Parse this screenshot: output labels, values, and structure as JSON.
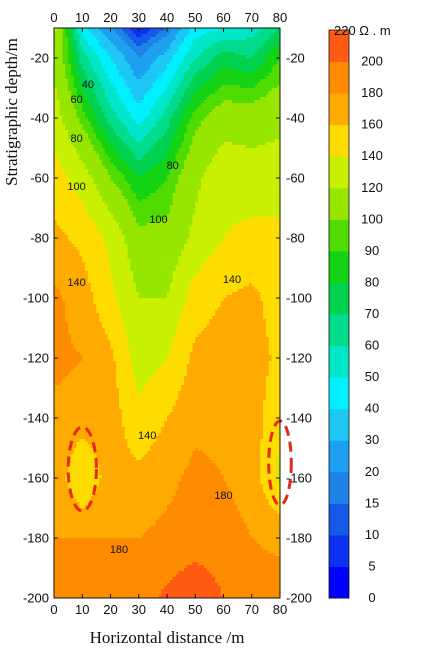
{
  "chart_data": {
    "type": "heatmap",
    "subtype": "filled-contour",
    "title": "",
    "xlabel": "Horizontal distance /m",
    "ylabel": "Stratigraphic depth/m",
    "xlim": [
      0,
      80
    ],
    "ylim": [
      -200,
      -10
    ],
    "x_ticks": [
      "0",
      "10",
      "20",
      "30",
      "40",
      "50",
      "60",
      "70",
      "80"
    ],
    "y_ticks": [
      "-20",
      "-40",
      "-60",
      "-80",
      "-100",
      "-120",
      "-140",
      "-160",
      "-180",
      "-200"
    ],
    "colorbar": {
      "unit_label": "220 Ω . m",
      "levels": [
        "0",
        "5",
        "10",
        "15",
        "20",
        "30",
        "40",
        "50",
        "60",
        "70",
        "80",
        "90",
        "100",
        "120",
        "140",
        "160",
        "180",
        "200"
      ],
      "colors": [
        "#0000ff",
        "#0a32f0",
        "#145ae6",
        "#1e82e6",
        "#1ea0f0",
        "#1ec8f5",
        "#00f0ff",
        "#00e6c8",
        "#00dc8c",
        "#00d250",
        "#14d214",
        "#50dc00",
        "#96e600",
        "#c8f000",
        "#ffdc00",
        "#ffaa00",
        "#ff8c00",
        "#ff5a14"
      ]
    },
    "x": [
      0,
      10,
      20,
      30,
      40,
      50,
      60,
      70,
      80
    ],
    "y": [
      -10,
      -20,
      -40,
      -60,
      -80,
      -100,
      -120,
      -140,
      -160,
      -180,
      -200
    ],
    "z": [
      [
        125,
        45,
        20,
        5,
        15,
        45,
        50,
        55,
        70
      ],
      [
        115,
        65,
        40,
        20,
        35,
        60,
        75,
        70,
        90
      ],
      [
        130,
        95,
        65,
        45,
        65,
        95,
        110,
        110,
        115
      ],
      [
        150,
        130,
        100,
        80,
        90,
        115,
        135,
        130,
        130
      ],
      [
        165,
        155,
        135,
        105,
        105,
        125,
        140,
        145,
        145
      ],
      [
        185,
        170,
        145,
        120,
        120,
        150,
        160,
        165,
        150
      ],
      [
        185,
        180,
        165,
        130,
        140,
        165,
        170,
        170,
        155
      ],
      [
        175,
        170,
        170,
        145,
        160,
        175,
        175,
        170,
        145
      ],
      [
        175,
        140,
        170,
        165,
        175,
        185,
        180,
        170,
        135
      ],
      [
        180,
        180,
        180,
        180,
        185,
        190,
        190,
        180,
        175
      ],
      [
        195,
        195,
        190,
        190,
        205,
        215,
        200,
        190,
        190
      ]
    ],
    "contour_labels": [
      {
        "text": "40",
        "x": 12,
        "y": -30
      },
      {
        "text": "60",
        "x": 8,
        "y": -35
      },
      {
        "text": "80",
        "x": 8,
        "y": -48
      },
      {
        "text": "80",
        "x": 42,
        "y": -57
      },
      {
        "text": "100",
        "x": 8,
        "y": -64
      },
      {
        "text": "100",
        "x": 37,
        "y": -75
      },
      {
        "text": "140",
        "x": 8,
        "y": -96
      },
      {
        "text": "140",
        "x": 63,
        "y": -95
      },
      {
        "text": "140",
        "x": 33,
        "y": -147
      },
      {
        "text": "180",
        "x": 60,
        "y": -167
      },
      {
        "text": "180",
        "x": 23,
        "y": -185
      }
    ],
    "highlight_ellipses": [
      {
        "cx": 10,
        "cy": -157,
        "rx": 5,
        "ry": 14,
        "color": "#e8281e"
      },
      {
        "cx": 80,
        "cy": -155,
        "rx": 4,
        "ry": 14,
        "color": "#e8281e"
      }
    ],
    "grid": false,
    "legend": "colorbar-right"
  }
}
